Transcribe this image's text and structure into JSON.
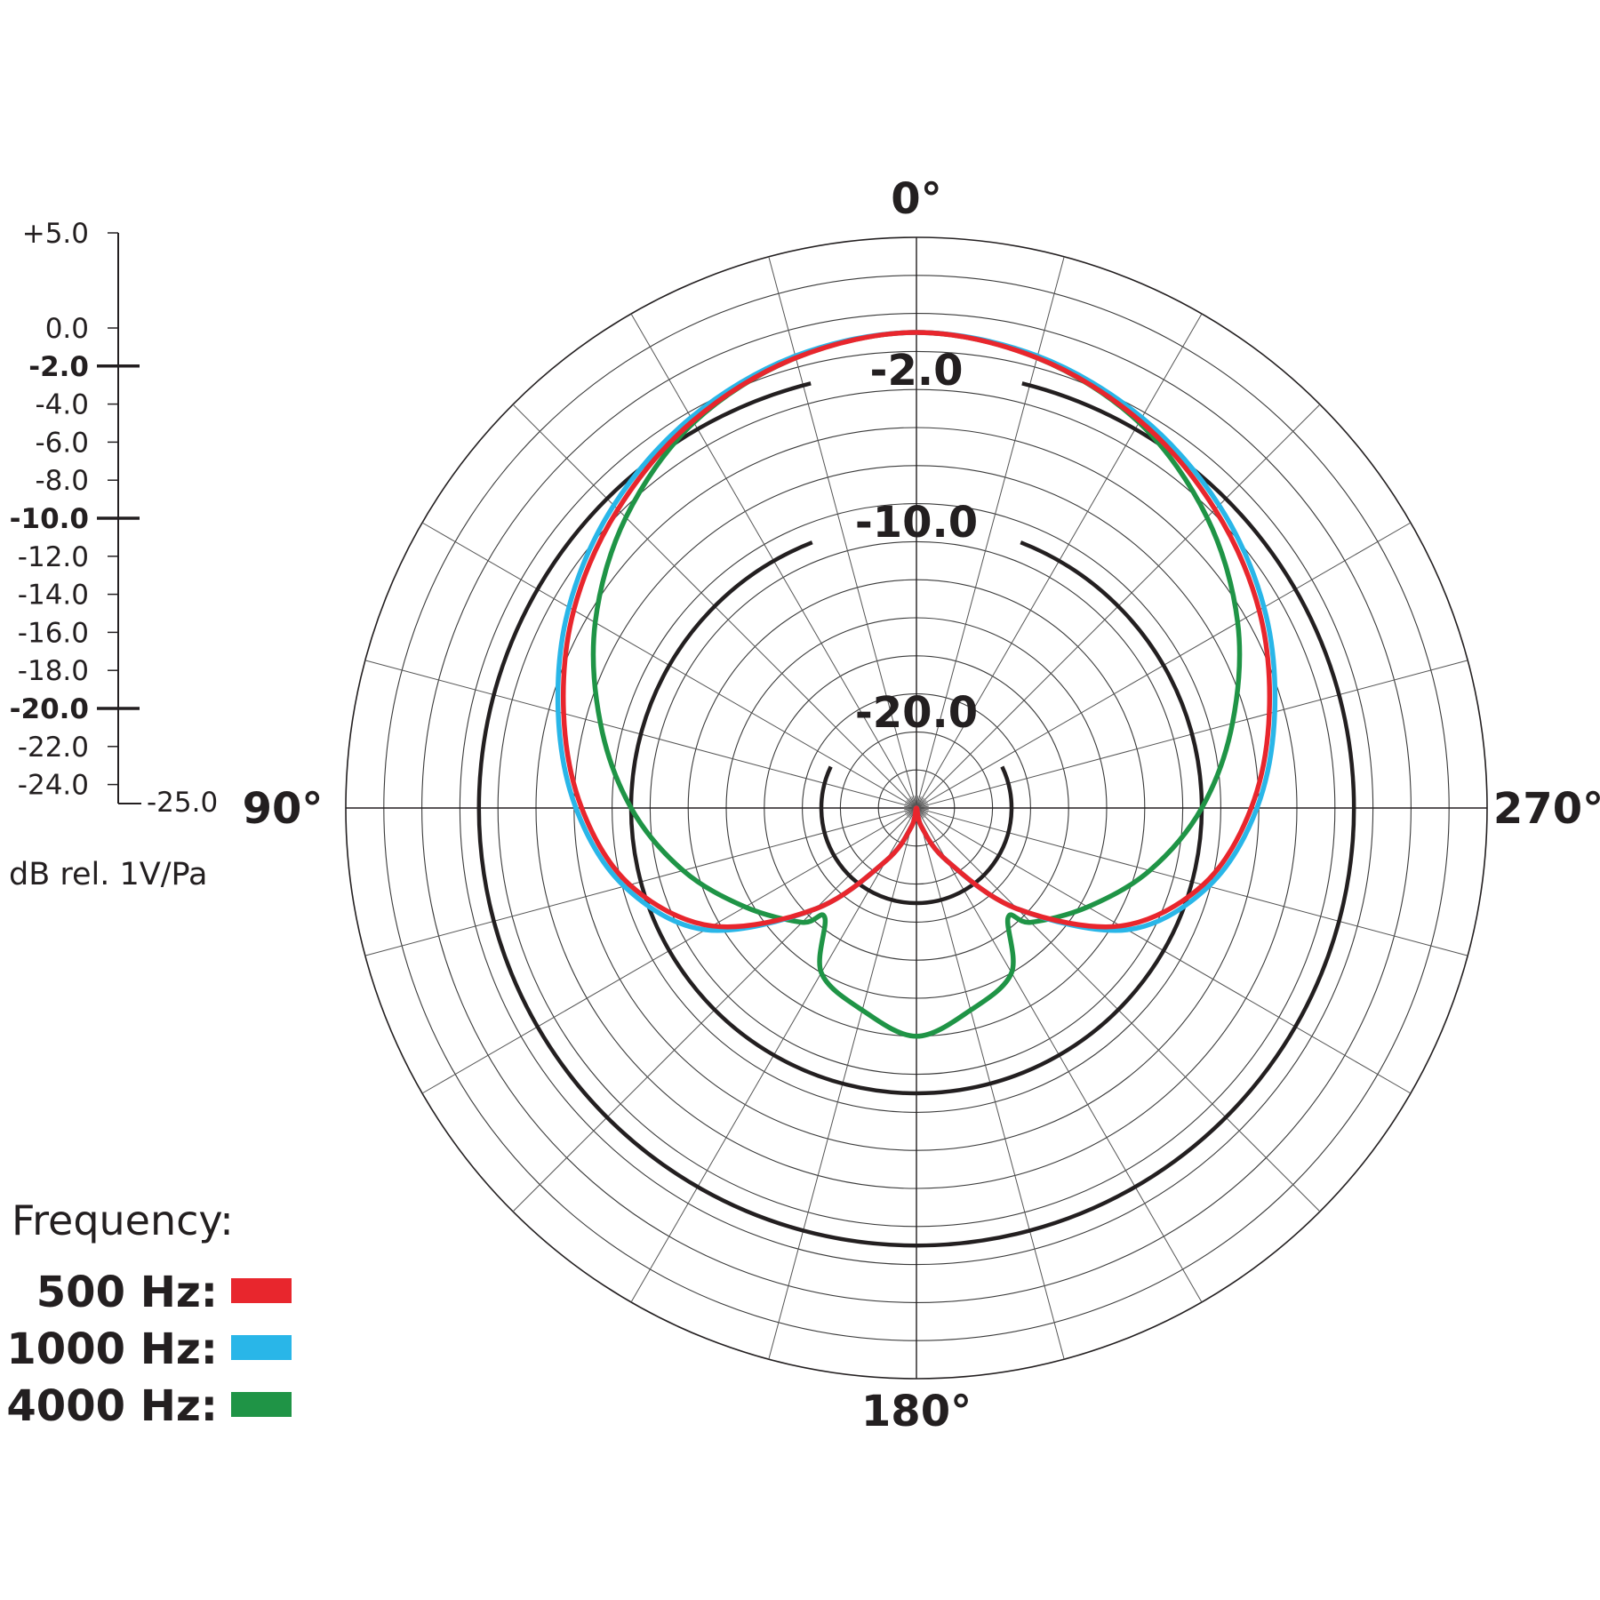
{
  "chart_data": {
    "type": "polar",
    "angle_labels": [
      {
        "angle": 0,
        "text": "0°"
      },
      {
        "angle": 90,
        "text": "90°"
      },
      {
        "angle": 180,
        "text": "180°"
      },
      {
        "angle": 270,
        "text": "270°"
      }
    ],
    "angle_gridline_step_deg": 15,
    "radial_range_db": [
      -25,
      5
    ],
    "radial_gridline_step_db": 2,
    "major_rings": [
      {
        "db": -2,
        "label": "-2.0"
      },
      {
        "db": -10,
        "label": "-10.0"
      },
      {
        "db": -20,
        "label": "-20.0"
      }
    ],
    "scale": {
      "ticks": [
        {
          "db": 5,
          "label": "+5.0",
          "major": false
        },
        {
          "db": 0,
          "label": "0.0",
          "major": false
        },
        {
          "db": -2,
          "label": "-2.0",
          "major": true
        },
        {
          "db": -4,
          "label": "-4.0",
          "major": false
        },
        {
          "db": -6,
          "label": "-6.0",
          "major": false
        },
        {
          "db": -8,
          "label": "-8.0",
          "major": false
        },
        {
          "db": -10,
          "label": "-10.0",
          "major": true
        },
        {
          "db": -12,
          "label": "-12.0",
          "major": false
        },
        {
          "db": -14,
          "label": "-14.0",
          "major": false
        },
        {
          "db": -16,
          "label": "-16.0",
          "major": false
        },
        {
          "db": -18,
          "label": "-18.0",
          "major": false
        },
        {
          "db": -20,
          "label": "-20.0",
          "major": true
        },
        {
          "db": -22,
          "label": "-22.0",
          "major": false
        },
        {
          "db": -24,
          "label": "-24.0",
          "major": false
        }
      ],
      "bottom_label": "-25.0",
      "unit": "dB rel. 1V/Pa"
    },
    "legend": {
      "title": "Frequency:",
      "placement": "bottom-left"
    },
    "series": [
      {
        "name": "500 Hz:",
        "color": "#e8262d",
        "angles": [
          0,
          15,
          30,
          45,
          60,
          75,
          90,
          105,
          120,
          135,
          150,
          165,
          180
        ],
        "values_db": [
          0,
          -0.5,
          -1.5,
          -2.8,
          -4.2,
          -5.8,
          -7.4,
          -9.4,
          -12.6,
          -17.5,
          -21.8,
          -24.0,
          -25.0
        ]
      },
      {
        "name": "1000 Hz:",
        "color": "#29b6e8",
        "angles": [
          0,
          15,
          30,
          45,
          60,
          75,
          90,
          105,
          120,
          135,
          150,
          165,
          180
        ],
        "values_db": [
          0,
          -0.4,
          -1.3,
          -2.5,
          -3.9,
          -5.5,
          -7.1,
          -9.1,
          -12.2,
          -17.5,
          -21.8,
          -24.0,
          -25.0
        ]
      },
      {
        "name": "4000 Hz:",
        "color": "#1f9446",
        "angles": [
          0,
          15,
          30,
          45,
          60,
          75,
          90,
          105,
          120,
          135,
          140,
          150,
          165,
          180
        ],
        "values_db": [
          0,
          -0.5,
          -1.6,
          -3.4,
          -5.5,
          -7.8,
          -10.0,
          -12.3,
          -14.6,
          -16.5,
          -17.5,
          -15.0,
          -14.0,
          -13.0
        ]
      }
    ]
  }
}
